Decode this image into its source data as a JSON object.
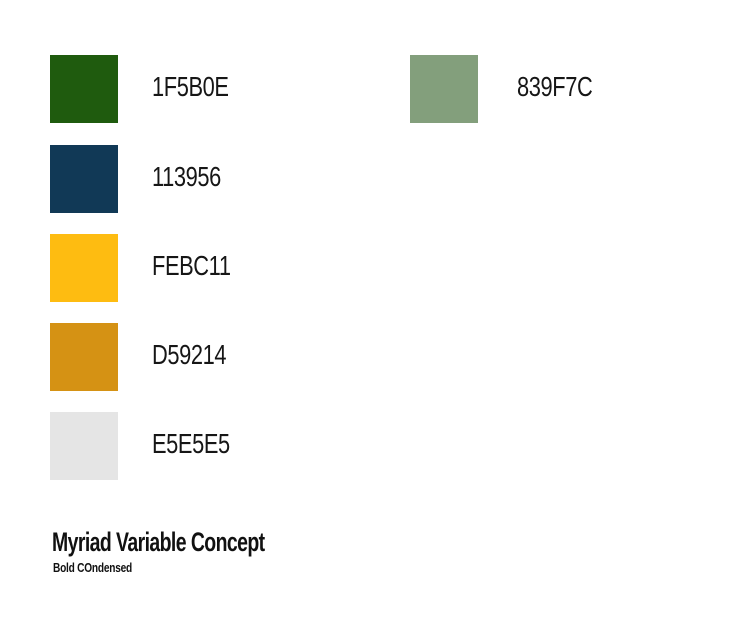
{
  "palette": {
    "left_column": [
      {
        "hex": "1F5B0E",
        "color": "#1F5B0E"
      },
      {
        "hex": "113956",
        "color": "#113956"
      },
      {
        "hex": "FEBC11",
        "color": "#FEBC11"
      },
      {
        "hex": "D59214",
        "color": "#D59214"
      },
      {
        "hex": "E5E5E5",
        "color": "#E5E5E5"
      }
    ],
    "right_column": [
      {
        "hex": "839F7C",
        "color": "#839F7C"
      }
    ]
  },
  "font": {
    "name": "Myriad Variable Concept",
    "style": "Bold COndensed"
  }
}
